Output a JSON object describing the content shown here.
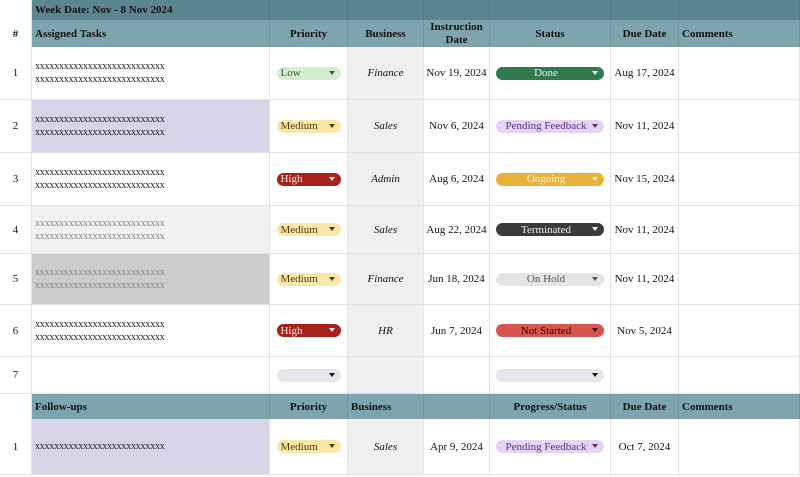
{
  "sheet": {
    "title": "Week Date:  Nov - 8 Nov 2024",
    "colors": {
      "title_band": "#5b8591",
      "header_band": "#7ea4ad",
      "business_col_bg": "#efefef"
    },
    "headers": {
      "num": "#",
      "task": "Assigned Tasks",
      "priority": "Priority",
      "business": "Business",
      "instruction": "Instruction Date",
      "status": "Status",
      "due": "Due Date",
      "comments": "Comments"
    },
    "pill_styles": {
      "priority": {
        "Low": {
          "bg": "#d4ecd0",
          "fg": "#2f5e2f"
        },
        "Medium": {
          "bg": "#fbe7a8",
          "fg": "#4a3a10"
        },
        "High": {
          "bg": "#a8221c",
          "fg": "#fde6e3"
        },
        "": {
          "bg": "#e6e7ea",
          "fg": "#111111"
        }
      },
      "status": {
        "Done": {
          "bg": "#2f7a4f",
          "fg": "#e6f4ea"
        },
        "Pending Feedback": {
          "bg": "#e5d5f5",
          "fg": "#5b2d85"
        },
        "Ongoing": {
          "bg": "#e8b13a",
          "fg": "#fff4d8"
        },
        "Terminated": {
          "bg": "#3b3b3b",
          "fg": "#f0f0f0"
        },
        "On Hold": {
          "bg": "#e4e4e4",
          "fg": "#555555"
        },
        "Not Started": {
          "bg": "#d9534f",
          "fg": "#2a0606"
        },
        "": {
          "bg": "#e6e7ea",
          "fg": "#111111"
        }
      }
    },
    "rows": [
      {
        "num": "1",
        "task": "xxxxxxxxxxxxxxxxxxxxxxxxxxx\nxxxxxxxxxxxxxxxxxxxxxxxxxxx",
        "task_bg": "#ffffff",
        "task_muted": false,
        "priority": "Low",
        "business": "Finance",
        "instruction": "Nov 19, 2024",
        "status": "Done",
        "due": "Aug 17, 2024",
        "comments": ""
      },
      {
        "num": "2",
        "task": "xxxxxxxxxxxxxxxxxxxxxxxxxxx\nxxxxxxxxxxxxxxxxxxxxxxxxxxx",
        "task_bg": "#d9d3e8",
        "task_muted": false,
        "priority": "Medium",
        "business": "Sales",
        "instruction": "Nov 6, 2024",
        "status": "Pending Feedback",
        "due": "Nov 11, 2024",
        "comments": ""
      },
      {
        "num": "3",
        "task": "xxxxxxxxxxxxxxxxxxxxxxxxxxx\nxxxxxxxxxxxxxxxxxxxxxxxxxxx",
        "task_bg": "#ffffff",
        "task_muted": false,
        "priority": "High",
        "business": "Admin",
        "instruction": "Aug 6, 2024",
        "status": "Ongoing",
        "due": "Nov 15, 2024",
        "comments": ""
      },
      {
        "num": "4",
        "task": "xxxxxxxxxxxxxxxxxxxxxxxxxxx\nxxxxxxxxxxxxxxxxxxxxxxxxxxx",
        "task_bg": "#f1f1f1",
        "task_muted": true,
        "priority": "Medium",
        "business": "Sales",
        "instruction": "Aug 22, 2024",
        "status": "Terminated",
        "due": "Nov 11, 2024",
        "comments": ""
      },
      {
        "num": "5",
        "task": "xxxxxxxxxxxxxxxxxxxxxxxxxxx\nxxxxxxxxxxxxxxxxxxxxxxxxxxx",
        "task_bg": "#cccccc",
        "task_muted": true,
        "priority": "Medium",
        "business": "Finance",
        "instruction": "Jun 18, 2024",
        "status": "On Hold",
        "due": "Nov 11, 2024",
        "comments": ""
      },
      {
        "num": "6",
        "task": "xxxxxxxxxxxxxxxxxxxxxxxxxxx\nxxxxxxxxxxxxxxxxxxxxxxxxxxx",
        "task_bg": "#ffffff",
        "task_muted": false,
        "priority": "High",
        "business": "HR",
        "instruction": "Jun 7, 2024",
        "status": "Not Started",
        "due": "Nov 5, 2024",
        "comments": ""
      },
      {
        "num": "7",
        "task": "",
        "task_bg": "#ffffff",
        "task_muted": false,
        "priority": "",
        "business": "",
        "instruction": "",
        "status": "",
        "due": "",
        "comments": ""
      }
    ],
    "followups": {
      "headers": {
        "task": "Follow-ups",
        "priority": "Priority",
        "business": "Business",
        "instruction": "",
        "status": "Progress/Status",
        "due": "Due Date",
        "comments": "Comments"
      },
      "rows": [
        {
          "num": "1",
          "task": "xxxxxxxxxxxxxxxxxxxxxxxxxxx",
          "task_bg": "#d9d3e8",
          "task_muted": false,
          "priority": "Medium",
          "business": "Sales",
          "instruction": "Apr 9, 2024",
          "status": "Pending Feedback",
          "due": "Oct 7, 2024",
          "comments": ""
        }
      ]
    }
  }
}
